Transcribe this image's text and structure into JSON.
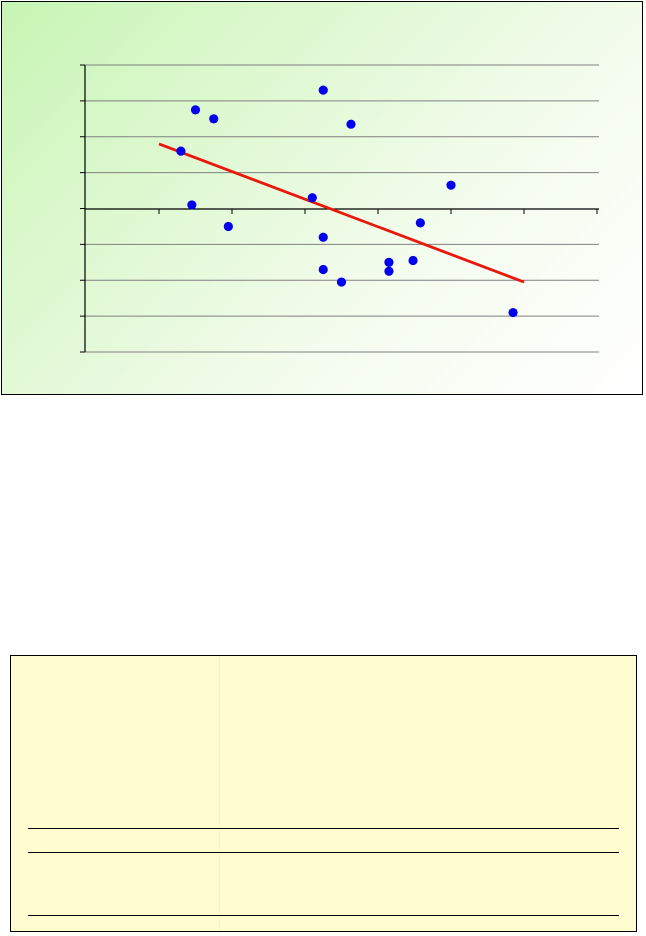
{
  "chart_data": {
    "type": "scatter",
    "title": "",
    "xlabel": "",
    "ylabel": "",
    "xlim": [
      -1,
      6
    ],
    "ylim": [
      -4,
      4
    ],
    "x_ticks": [
      -1,
      0,
      1,
      2,
      3,
      4,
      5,
      6
    ],
    "y_ticks": [
      -4,
      -3,
      -2,
      -1,
      0,
      1,
      2,
      3,
      4
    ],
    "grid": "horizontal",
    "series": [
      {
        "points": [
          {
            "x": 0.3,
            "y": 1.6
          },
          {
            "x": 0.45,
            "y": 0.1
          },
          {
            "x": 0.5,
            "y": 2.75
          },
          {
            "x": 0.75,
            "y": 2.5
          },
          {
            "x": 0.95,
            "y": -0.5
          },
          {
            "x": 2.1,
            "y": 0.3
          },
          {
            "x": 2.25,
            "y": 3.3
          },
          {
            "x": 2.25,
            "y": -0.8
          },
          {
            "x": 2.25,
            "y": -1.7
          },
          {
            "x": 2.5,
            "y": -2.05
          },
          {
            "x": 2.63,
            "y": 2.35
          },
          {
            "x": 3.15,
            "y": -1.5
          },
          {
            "x": 3.15,
            "y": -1.75
          },
          {
            "x": 3.48,
            "y": -1.45
          },
          {
            "x": 3.58,
            "y": -0.4
          },
          {
            "x": 4.0,
            "y": 0.65
          },
          {
            "x": 4.85,
            "y": -2.9
          }
        ],
        "color": "#0000ee"
      }
    ],
    "trendline": {
      "x": [
        0,
        5
      ],
      "y": [
        1.8,
        -2.05
      ],
      "color": "#e8180c"
    }
  },
  "colors": {
    "axis": "#000000",
    "grid": "#808080",
    "stats_background": "#fffdd0"
  }
}
